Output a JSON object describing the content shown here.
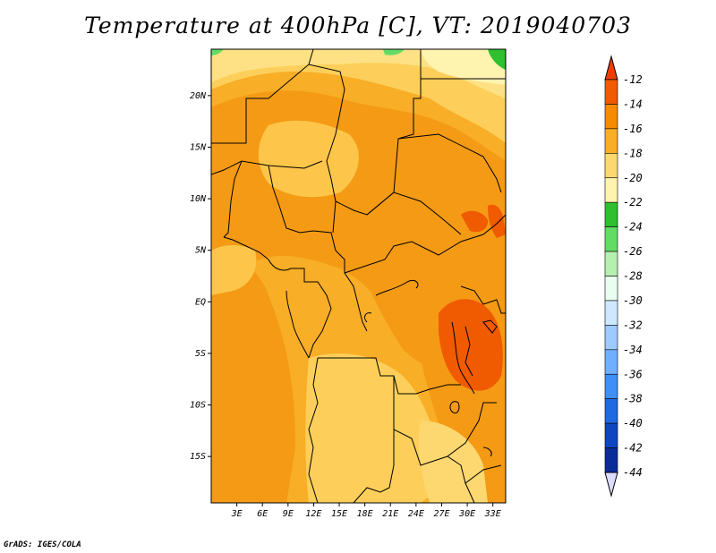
{
  "title": "Temperature at 400hPa [C], VT: 2019040703",
  "credit": "GrADS: IGES/COLA",
  "map": {
    "lon_range": [
      0,
      34.5
    ],
    "lat_range": [
      -19.5,
      24.5
    ],
    "lat_ticks": [
      {
        "value": 20,
        "label": "20N"
      },
      {
        "value": 15,
        "label": "15N"
      },
      {
        "value": 10,
        "label": "10N"
      },
      {
        "value": 5,
        "label": "5N"
      },
      {
        "value": 0,
        "label": "EQ"
      },
      {
        "value": -5,
        "label": "5S"
      },
      {
        "value": -10,
        "label": "10S"
      },
      {
        "value": -15,
        "label": "15S"
      }
    ],
    "lon_ticks": [
      {
        "value": 3,
        "label": "3E"
      },
      {
        "value": 6,
        "label": "6E"
      },
      {
        "value": 9,
        "label": "9E"
      },
      {
        "value": 12,
        "label": "12E"
      },
      {
        "value": 15,
        "label": "15E"
      },
      {
        "value": 18,
        "label": "18E"
      },
      {
        "value": 21,
        "label": "21E"
      },
      {
        "value": 24,
        "label": "24E"
      },
      {
        "value": 27,
        "label": "27E"
      },
      {
        "value": 30,
        "label": "30E"
      },
      {
        "value": 33,
        "label": "33E"
      }
    ]
  },
  "colorbar": {
    "labels": [
      "-12",
      "-14",
      "-16",
      "-18",
      "-20",
      "-22",
      "-24",
      "-26",
      "-28",
      "-30",
      "-32",
      "-34",
      "-36",
      "-38",
      "-40",
      "-42",
      "-44"
    ],
    "colors": [
      "#f05a00",
      "#f58c00",
      "#f8ae26",
      "#fdd870",
      "#fff3b0",
      "#2fbf2f",
      "#63dc63",
      "#b6f0b0",
      "#e8fff0",
      "#cde8ff",
      "#9ecbff",
      "#6eb0ff",
      "#3f8ff5",
      "#1f6ae0",
      "#0e46c0",
      "#0a2c96",
      "#08125e"
    ],
    "top_arrow_color": "#f03c00",
    "bottom_arrow_color": "#dcdcff"
  }
}
